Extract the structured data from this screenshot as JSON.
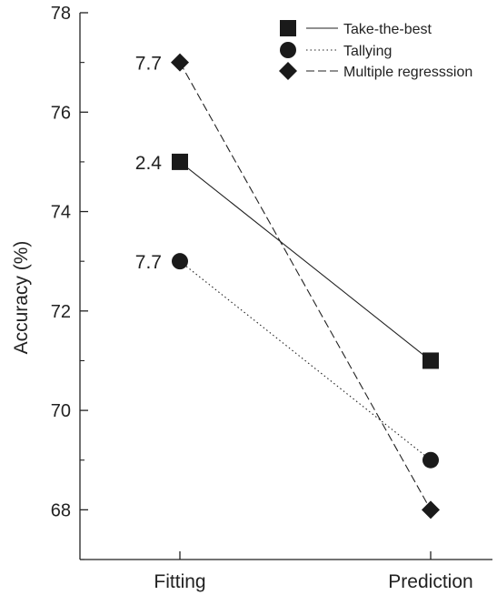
{
  "chart_data": {
    "type": "line",
    "categories": [
      "Fitting",
      "Prediction"
    ],
    "ylabel": "Accuracy (%)",
    "xlabel": "",
    "ylim": [
      67,
      78
    ],
    "yticks": [
      68,
      70,
      72,
      74,
      76,
      78
    ],
    "grid": false,
    "legend_position": "top-right",
    "series": [
      {
        "name": "Take-the-best",
        "values": [
          75,
          71
        ],
        "marker": "square",
        "line_style": "solid",
        "label_at_fitting": "2.4"
      },
      {
        "name": "Tallying",
        "values": [
          73,
          69
        ],
        "marker": "circle",
        "line_style": "dotted",
        "label_at_fitting": "7.7"
      },
      {
        "name": "Multiple regresssion",
        "values": [
          77,
          68
        ],
        "marker": "diamond",
        "line_style": "dashed",
        "label_at_fitting": "7.7"
      }
    ]
  }
}
